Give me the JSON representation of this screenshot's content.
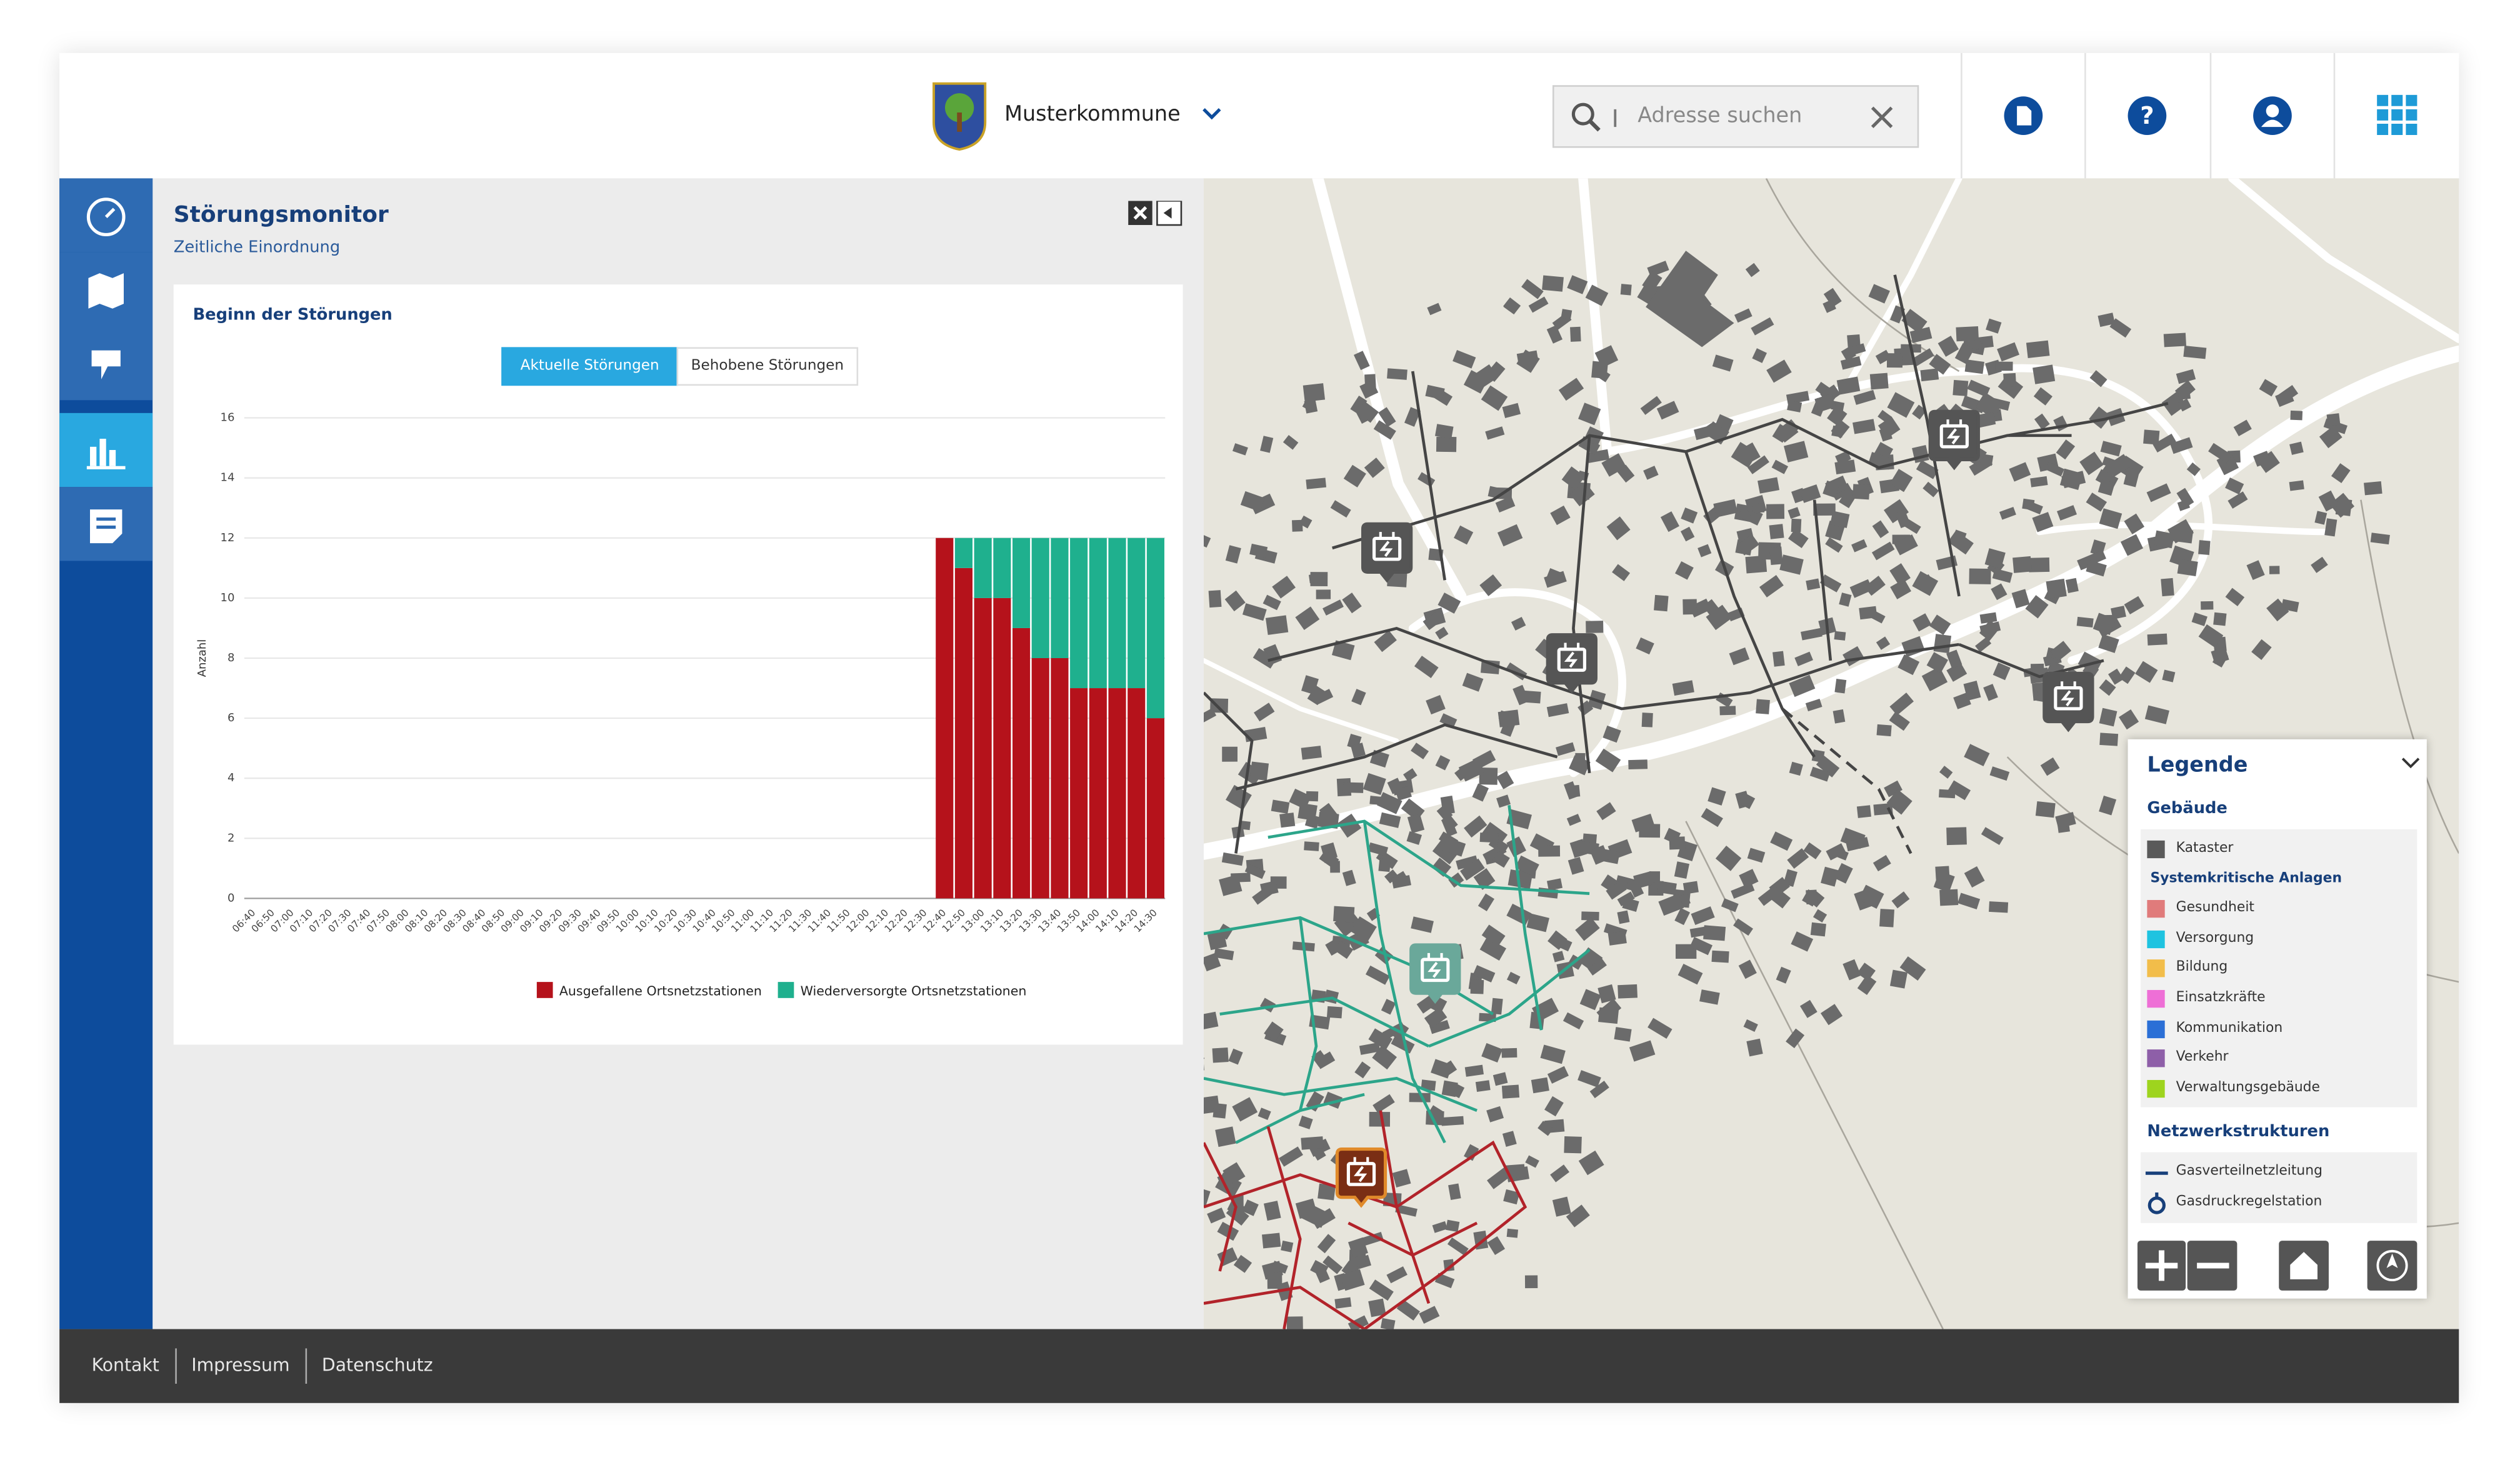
{
  "header": {
    "municipality": "Musterkommune",
    "search_placeholder": "Adresse suchen"
  },
  "panel": {
    "title": "Störungsmonitor",
    "subtitle": "Zeitliche Einordnung"
  },
  "chart_data": {
    "type": "bar",
    "stacked": true,
    "title": "Beginn der Störungen",
    "tabs": [
      "Aktuelle Störungen",
      "Behobene Störungen"
    ],
    "ylabel": "Anzahl",
    "categories": [
      "06:40",
      "06:50",
      "07:00",
      "07:10",
      "07:20",
      "07:30",
      "07:40",
      "07:50",
      "08:00",
      "08:10",
      "08:20",
      "08:30",
      "08:40",
      "08:50",
      "09:00",
      "09:10",
      "09:20",
      "09:30",
      "09:40",
      "09:50",
      "10:00",
      "10:10",
      "10:20",
      "10:30",
      "10:40",
      "10:50",
      "11:00",
      "11:10",
      "11:20",
      "11:30",
      "11:40",
      "11:50",
      "12:00",
      "12:10",
      "12:20",
      "12:30",
      "12:40",
      "12:50",
      "13:00",
      "13:10",
      "13:20",
      "13:30",
      "13:40",
      "13:50",
      "14:00",
      "14:10",
      "14:20",
      "14:30"
    ],
    "series": [
      {
        "name": "Ausgefallene Ortsnetzstationen",
        "color": "#b5121b",
        "values": [
          null,
          null,
          null,
          null,
          null,
          null,
          null,
          null,
          null,
          null,
          null,
          null,
          null,
          null,
          null,
          null,
          null,
          null,
          null,
          null,
          null,
          null,
          null,
          null,
          null,
          null,
          null,
          null,
          null,
          null,
          null,
          null,
          null,
          null,
          null,
          null,
          12,
          11,
          10,
          10,
          9,
          8,
          8,
          7,
          7,
          7,
          7,
          6
        ]
      },
      {
        "name": "Wiederversorgte Ortsnetzstationen",
        "color": "#1fb08e",
        "values": [
          null,
          null,
          null,
          null,
          null,
          null,
          null,
          null,
          null,
          null,
          null,
          null,
          null,
          null,
          null,
          null,
          null,
          null,
          null,
          null,
          null,
          null,
          null,
          null,
          null,
          null,
          null,
          null,
          null,
          null,
          null,
          null,
          null,
          null,
          null,
          null,
          0,
          1,
          2,
          2,
          3,
          4,
          4,
          5,
          5,
          5,
          5,
          6
        ]
      }
    ],
    "ylim": [
      0,
      16
    ],
    "yticks": [
      0,
      2,
      4,
      6,
      8,
      10,
      12,
      14,
      16
    ],
    "grid": true
  },
  "legend": {
    "title": "Legende",
    "sections": [
      {
        "heading": "Gebäude",
        "items": [
          {
            "label": "Kataster",
            "color": "#5a5a5a"
          }
        ],
        "subheading": "Systemkritische Anlagen",
        "subitems": [
          {
            "label": "Gesundheit",
            "color": "#e07b7b"
          },
          {
            "label": "Versorgung",
            "color": "#1ec3e0"
          },
          {
            "label": "Bildung",
            "color": "#f2bd4a"
          },
          {
            "label": "Einsatzkräfte",
            "color": "#ee6fd6"
          },
          {
            "label": "Kommunikation",
            "color": "#2b6fd6"
          },
          {
            "label": "Verkehr",
            "color": "#8e5fa8"
          },
          {
            "label": "Verwaltungsgebäude",
            "color": "#9ed41e"
          }
        ]
      },
      {
        "heading": "Netzwerkstrukturen",
        "items": [
          {
            "label": "Gasverteilnetzleitung"
          },
          {
            "label": "Gasdruckregelstation"
          }
        ]
      }
    ]
  },
  "footer": {
    "links": [
      "Kontakt",
      "Impressum",
      "Datenschutz"
    ]
  }
}
